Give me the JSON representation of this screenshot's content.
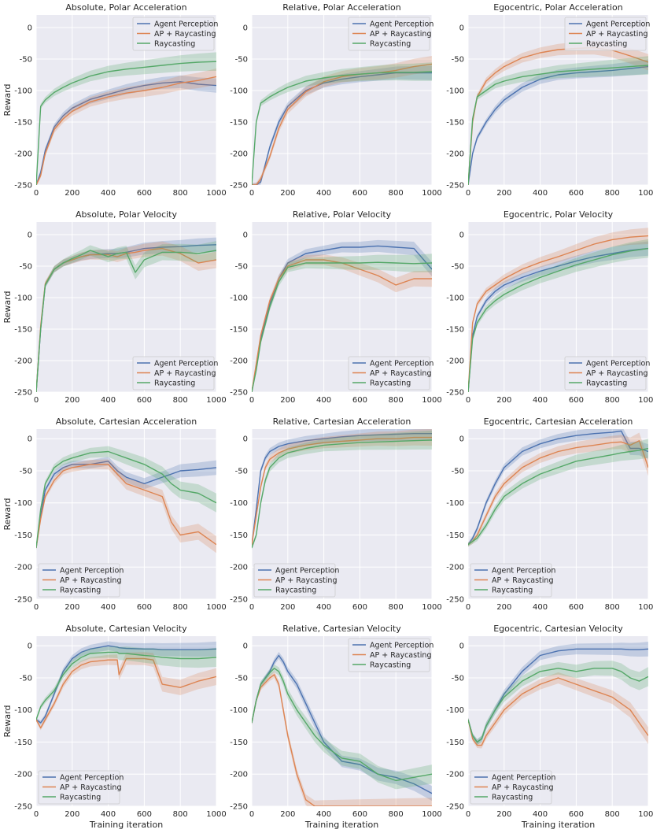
{
  "figure": {
    "ylabel": "Reward",
    "xlabel": "Training iteration",
    "xticks": [
      0,
      200,
      400,
      600,
      800,
      1000
    ],
    "yticks": [
      0,
      -50,
      -100,
      -150,
      -200,
      -250
    ],
    "colors": {
      "Agent Perception": "#4c72b0",
      "AP + Raycasting": "#dd8452",
      "Raycasting": "#55a868"
    },
    "background": "#eaeaf2"
  },
  "chart_data": [
    {
      "type": "line",
      "title": "Absolute, Polar Acceleration",
      "legend": "top-right",
      "xlim": [
        0,
        1000
      ],
      "ylim": [
        -250,
        20
      ],
      "x": [
        0,
        25,
        50,
        100,
        150,
        200,
        300,
        400,
        500,
        600,
        700,
        800,
        900,
        1000
      ],
      "series": [
        {
          "name": "Agent Perception",
          "values": [
            -250,
            -230,
            -195,
            -158,
            -140,
            -128,
            -114,
            -106,
            -98,
            -92,
            -88,
            -86,
            -90,
            -92
          ]
        },
        {
          "name": "AP + Raycasting",
          "values": [
            -250,
            -235,
            -200,
            -162,
            -145,
            -133,
            -118,
            -110,
            -104,
            -100,
            -95,
            -88,
            -84,
            -78
          ]
        },
        {
          "name": "Raycasting",
          "values": [
            -250,
            -125,
            -115,
            -103,
            -95,
            -88,
            -77,
            -70,
            -66,
            -63,
            -60,
            -57,
            -55,
            -54
          ]
        }
      ]
    },
    {
      "type": "line",
      "title": "Relative, Polar Acceleration",
      "legend": "top-right",
      "xlim": [
        0,
        1000
      ],
      "ylim": [
        -250,
        20
      ],
      "x": [
        0,
        25,
        50,
        100,
        150,
        200,
        300,
        400,
        500,
        600,
        700,
        800,
        900,
        1000
      ],
      "series": [
        {
          "name": "Agent Perception",
          "values": [
            -250,
            -250,
            -245,
            -190,
            -150,
            -125,
            -100,
            -88,
            -82,
            -78,
            -75,
            -72,
            -72,
            -72
          ]
        },
        {
          "name": "AP + Raycasting",
          "values": [
            -250,
            -250,
            -240,
            -205,
            -160,
            -130,
            -102,
            -86,
            -78,
            -74,
            -72,
            -68,
            -62,
            -58
          ]
        },
        {
          "name": "Raycasting",
          "values": [
            -250,
            -150,
            -120,
            -110,
            -102,
            -95,
            -85,
            -80,
            -76,
            -74,
            -72,
            -71,
            -71,
            -70
          ]
        }
      ]
    },
    {
      "type": "line",
      "title": "Egocentric, Polar Acceleration",
      "legend": "top-right",
      "xlim": [
        0,
        1000
      ],
      "ylim": [
        -250,
        20
      ],
      "x": [
        0,
        25,
        50,
        100,
        150,
        200,
        300,
        400,
        500,
        600,
        700,
        800,
        900,
        1000
      ],
      "series": [
        {
          "name": "Agent Perception",
          "values": [
            -250,
            -200,
            -175,
            -150,
            -130,
            -115,
            -95,
            -82,
            -75,
            -72,
            -70,
            -68,
            -65,
            -62
          ]
        },
        {
          "name": "AP + Raycasting",
          "values": [
            -250,
            -150,
            -110,
            -85,
            -72,
            -62,
            -48,
            -40,
            -35,
            -33,
            -32,
            -36,
            -45,
            -55
          ]
        },
        {
          "name": "Raycasting",
          "values": [
            -250,
            -145,
            -110,
            -100,
            -90,
            -85,
            -78,
            -74,
            -70,
            -68,
            -66,
            -64,
            -62,
            -60
          ]
        }
      ]
    },
    {
      "type": "line",
      "title": "Absolute, Polar Velocity",
      "legend": "bottom-right",
      "xlim": [
        0,
        1000
      ],
      "ylim": [
        -250,
        20
      ],
      "x": [
        0,
        25,
        50,
        100,
        150,
        200,
        250,
        300,
        400,
        450,
        500,
        550,
        600,
        700,
        800,
        900,
        1000
      ],
      "series": [
        {
          "name": "Agent Perception",
          "values": [
            -250,
            -150,
            -80,
            -55,
            -45,
            -40,
            -35,
            -32,
            -30,
            -30,
            -28,
            -25,
            -22,
            -20,
            -19,
            -17,
            -16
          ]
        },
        {
          "name": "AP + Raycasting",
          "values": [
            -250,
            -145,
            -78,
            -55,
            -45,
            -40,
            -35,
            -32,
            -32,
            -35,
            -30,
            -28,
            -25,
            -22,
            -30,
            -45,
            -40
          ]
        },
        {
          "name": "Raycasting",
          "values": [
            -250,
            -150,
            -80,
            -55,
            -45,
            -38,
            -32,
            -25,
            -35,
            -30,
            -28,
            -60,
            -40,
            -28,
            -28,
            -30,
            -25
          ]
        }
      ]
    },
    {
      "type": "line",
      "title": "Relative, Polar Velocity",
      "legend": "bottom-right",
      "xlim": [
        0,
        1000
      ],
      "ylim": [
        -250,
        20
      ],
      "x": [
        0,
        25,
        50,
        100,
        150,
        200,
        300,
        400,
        500,
        600,
        700,
        800,
        900,
        1000
      ],
      "series": [
        {
          "name": "Agent Perception",
          "values": [
            -250,
            -210,
            -165,
            -110,
            -70,
            -45,
            -30,
            -25,
            -20,
            -20,
            -18,
            -20,
            -22,
            -55
          ]
        },
        {
          "name": "AP + Raycasting",
          "values": [
            -250,
            -205,
            -160,
            -105,
            -70,
            -50,
            -40,
            -40,
            -45,
            -55,
            -65,
            -80,
            -70,
            -70
          ]
        },
        {
          "name": "Raycasting",
          "values": [
            -250,
            -215,
            -170,
            -115,
            -75,
            -52,
            -45,
            -45,
            -45,
            -45,
            -44,
            -45,
            -46,
            -45
          ]
        }
      ]
    },
    {
      "type": "line",
      "title": "Egocentric, Polar Velocity",
      "legend": "bottom-right",
      "xlim": [
        0,
        1000
      ],
      "ylim": [
        -250,
        20
      ],
      "x": [
        0,
        25,
        50,
        100,
        150,
        200,
        300,
        400,
        500,
        600,
        700,
        800,
        900,
        1000
      ],
      "series": [
        {
          "name": "Agent Perception",
          "values": [
            -250,
            -160,
            -130,
            -105,
            -90,
            -80,
            -68,
            -58,
            -50,
            -42,
            -35,
            -30,
            -25,
            -22
          ]
        },
        {
          "name": "AP + Raycasting",
          "values": [
            -250,
            -140,
            -110,
            -90,
            -80,
            -70,
            -55,
            -44,
            -35,
            -25,
            -15,
            -8,
            -4,
            -2
          ]
        },
        {
          "name": "Raycasting",
          "values": [
            -250,
            -165,
            -140,
            -118,
            -105,
            -95,
            -80,
            -68,
            -58,
            -48,
            -40,
            -32,
            -26,
            -22
          ]
        }
      ]
    },
    {
      "type": "line",
      "title": "Absolute, Cartesian Acceleration",
      "legend": "bottom-left",
      "xlim": [
        0,
        1000
      ],
      "ylim": [
        -250,
        15
      ],
      "x": [
        0,
        25,
        50,
        100,
        150,
        200,
        300,
        400,
        450,
        500,
        600,
        700,
        750,
        800,
        900,
        1000
      ],
      "series": [
        {
          "name": "Agent Perception",
          "values": [
            -170,
            -120,
            -80,
            -55,
            -45,
            -40,
            -40,
            -35,
            -50,
            -60,
            -70,
            -60,
            -55,
            -50,
            -48,
            -45
          ]
        },
        {
          "name": "AP + Raycasting",
          "values": [
            -170,
            -125,
            -90,
            -65,
            -50,
            -45,
            -40,
            -40,
            -55,
            -70,
            -80,
            -90,
            -130,
            -150,
            -145,
            -165
          ]
        },
        {
          "name": "Raycasting",
          "values": [
            -170,
            -110,
            -70,
            -45,
            -35,
            -30,
            -22,
            -20,
            -25,
            -30,
            -40,
            -55,
            -70,
            -80,
            -85,
            -100
          ]
        }
      ]
    },
    {
      "type": "line",
      "title": "Relative, Cartesian Acceleration",
      "legend": "bottom-left",
      "xlim": [
        0,
        1000
      ],
      "ylim": [
        -250,
        15
      ],
      "x": [
        0,
        25,
        50,
        75,
        100,
        150,
        200,
        300,
        400,
        500,
        600,
        700,
        800,
        900,
        1000
      ],
      "series": [
        {
          "name": "Agent Perception",
          "values": [
            -165,
            -110,
            -50,
            -30,
            -20,
            -12,
            -8,
            -3,
            0,
            3,
            5,
            6,
            7,
            8,
            8
          ]
        },
        {
          "name": "AP + Raycasting",
          "values": [
            -165,
            -120,
            -75,
            -45,
            -32,
            -22,
            -16,
            -10,
            -6,
            -4,
            -2,
            0,
            0,
            2,
            2
          ]
        },
        {
          "name": "Raycasting",
          "values": [
            -170,
            -150,
            -100,
            -65,
            -45,
            -30,
            -22,
            -15,
            -10,
            -8,
            -6,
            -5,
            -4,
            -3,
            -2
          ]
        }
      ]
    },
    {
      "type": "line",
      "title": "Egocentric, Cartesian Acceleration",
      "legend": "bottom-left",
      "xlim": [
        0,
        1000
      ],
      "ylim": [
        -250,
        15
      ],
      "x": [
        0,
        25,
        50,
        100,
        150,
        200,
        300,
        400,
        500,
        600,
        700,
        800,
        850,
        900,
        950,
        1000
      ],
      "series": [
        {
          "name": "Agent Perception",
          "values": [
            -165,
            -155,
            -140,
            -100,
            -70,
            -45,
            -20,
            -8,
            0,
            5,
            8,
            10,
            12,
            -15,
            -15,
            -20
          ]
        },
        {
          "name": "AP + Raycasting",
          "values": [
            -165,
            -160,
            -150,
            -120,
            -90,
            -70,
            -45,
            -30,
            -20,
            -14,
            -10,
            -6,
            -5,
            -10,
            -3,
            -45
          ]
        },
        {
          "name": "Raycasting",
          "values": [
            -165,
            -160,
            -155,
            -135,
            -110,
            -90,
            -70,
            -55,
            -45,
            -35,
            -30,
            -25,
            -22,
            -20,
            -18,
            -15
          ]
        }
      ]
    },
    {
      "type": "line",
      "title": "Absolute, Cartesian Velocity",
      "legend": "bottom-left",
      "xlim": [
        0,
        1000
      ],
      "ylim": [
        -250,
        15
      ],
      "x": [
        0,
        25,
        50,
        100,
        150,
        200,
        250,
        300,
        400,
        450,
        460,
        500,
        600,
        650,
        700,
        800,
        900,
        1000
      ],
      "series": [
        {
          "name": "Agent Perception",
          "values": [
            -115,
            -120,
            -110,
            -75,
            -40,
            -20,
            -10,
            -5,
            0,
            -2,
            -3,
            -4,
            -5,
            -5,
            -6,
            -6,
            -6,
            -5
          ]
        },
        {
          "name": "AP + Raycasting",
          "values": [
            -115,
            -128,
            -115,
            -90,
            -60,
            -40,
            -30,
            -25,
            -22,
            -22,
            -45,
            -20,
            -20,
            -22,
            -60,
            -65,
            -55,
            -48
          ]
        },
        {
          "name": "Raycasting",
          "values": [
            -115,
            -95,
            -85,
            -70,
            -45,
            -28,
            -18,
            -12,
            -10,
            -10,
            -12,
            -12,
            -15,
            -16,
            -18,
            -20,
            -20,
            -18
          ]
        }
      ]
    },
    {
      "type": "line",
      "title": "Relative, Cartesian Velocity",
      "legend": "top-right",
      "xlim": [
        0,
        1000
      ],
      "ylim": [
        -250,
        15
      ],
      "x": [
        0,
        25,
        50,
        100,
        125,
        150,
        175,
        200,
        250,
        300,
        350,
        400,
        500,
        600,
        700,
        800,
        900,
        1000
      ],
      "series": [
        {
          "name": "Agent Perception",
          "values": [
            -120,
            -85,
            -60,
            -40,
            -25,
            -15,
            -25,
            -40,
            -60,
            -90,
            -120,
            -150,
            -180,
            -185,
            -200,
            -205,
            -215,
            -230
          ]
        },
        {
          "name": "AP + Raycasting",
          "values": [
            -120,
            -85,
            -65,
            -50,
            -45,
            -60,
            -100,
            -140,
            -200,
            -240,
            -250,
            -250,
            -250,
            -250,
            -250,
            -250,
            -250,
            -250
          ]
        },
        {
          "name": "Raycasting",
          "values": [
            -120,
            -85,
            -60,
            -42,
            -35,
            -40,
            -55,
            -75,
            -100,
            -120,
            -140,
            -155,
            -175,
            -180,
            -200,
            -210,
            -205,
            -200
          ]
        }
      ]
    },
    {
      "type": "line",
      "title": "Egocentric, Cartesian Velocity",
      "legend": "bottom-left",
      "xlim": [
        0,
        1000
      ],
      "ylim": [
        -250,
        15
      ],
      "x": [
        0,
        25,
        50,
        75,
        100,
        150,
        200,
        300,
        400,
        500,
        600,
        700,
        800,
        850,
        900,
        950,
        1000
      ],
      "series": [
        {
          "name": "Agent Perception",
          "values": [
            -115,
            -140,
            -150,
            -145,
            -125,
            -100,
            -75,
            -40,
            -15,
            -8,
            -5,
            -5,
            -5,
            -5,
            -6,
            -6,
            -5
          ]
        },
        {
          "name": "AP + Raycasting",
          "values": [
            -115,
            -145,
            -155,
            -155,
            -140,
            -120,
            -100,
            -75,
            -60,
            -50,
            -60,
            -70,
            -80,
            -90,
            -100,
            -120,
            -140
          ]
        },
        {
          "name": "Raycasting",
          "values": [
            -115,
            -140,
            -150,
            -145,
            -125,
            -100,
            -80,
            -55,
            -40,
            -35,
            -40,
            -35,
            -35,
            -40,
            -50,
            -55,
            -48
          ]
        }
      ]
    }
  ]
}
